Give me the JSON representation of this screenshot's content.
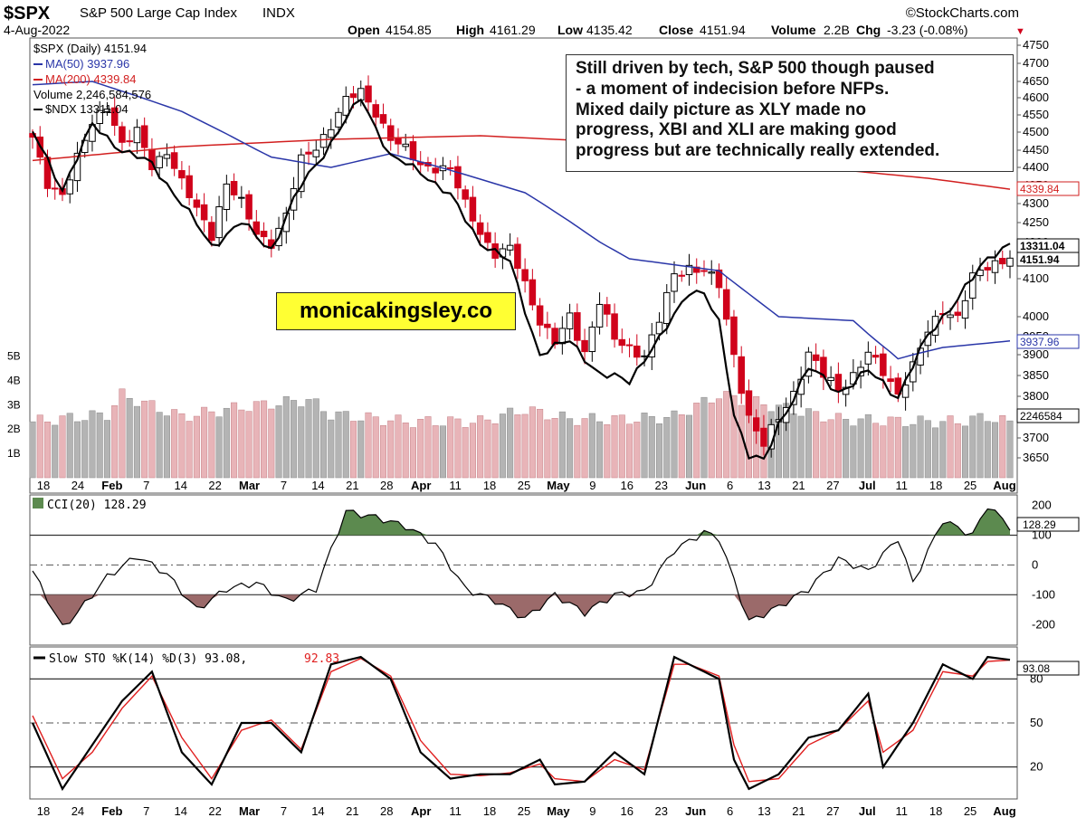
{
  "header": {
    "symbol": "$SPX",
    "name": "S&P 500 Large Cap Index",
    "exchange": "INDX",
    "date": "4-Aug-2022",
    "source": "©StockCharts.com",
    "open_label": "Open",
    "open": "4154.85",
    "high_label": "High",
    "high": "4161.29",
    "low_label": "Low",
    "low": "4135.42",
    "close_label": "Close",
    "close": "4151.94",
    "volume_label": "Volume",
    "volume": "2.2B",
    "chg_label": "Chg",
    "chg": "-3.23 (-0.08%)"
  },
  "legend": {
    "main": "$SPX (Daily) 4151.94",
    "ma50": "MA(50) 3937.96",
    "ma200": "MA(200) 4339.84",
    "volume": "Volume 2,246,584,576",
    "ndx": "$NDX 13311.04"
  },
  "annotation": {
    "lines": [
      "Still driven by tech, S&P 500 though paused",
      "- a moment of indecision before NFPs.",
      "Mixed daily picture as XLY made no",
      "progress, XBI and XLI are making good",
      "progress but are technically really extended."
    ]
  },
  "watermark": "monicakingsley.co",
  "value_tags": {
    "ndx": "13311.04",
    "close": "4151.94",
    "ma200": "4339.84",
    "ma50": "3937.96",
    "volume": "2246584"
  },
  "cci_legend": "CCI(20) 128.29",
  "cci_tag": "128.29",
  "sto_legend_main": "Slow STO %K(14) %D(3) 93.08,",
  "sto_legend_d": "92.83",
  "sto_tag": "93.08",
  "colors": {
    "up": "#000000",
    "down": "#d0021b",
    "ma50": "#2a36a8",
    "ma200": "#d21f1f",
    "vol_up": "#b4b4b4",
    "vol_down": "#e8b4b8",
    "cci_pos_fill": "#5c8a4f",
    "cci_neg_fill": "#9b6a6a",
    "sto_d": "#e02020"
  },
  "chart_data": [
    {
      "type": "candlestick",
      "title": "$SPX (Daily) 4151.94",
      "x_labels": [
        "18",
        "24",
        "Feb",
        "7",
        "14",
        "22",
        "Mar",
        "7",
        "14",
        "21",
        "28",
        "Apr",
        "11",
        "18",
        "25",
        "May",
        "9",
        "16",
        "23",
        "Jun",
        "6",
        "13",
        "21",
        "27",
        "Jul",
        "11",
        "18",
        "25",
        "Aug"
      ],
      "y_ticks": [
        3650,
        3700,
        3800,
        3850,
        3900,
        3950,
        4000,
        4100,
        4150,
        4200,
        4250,
        4300,
        4350,
        4400,
        4450,
        4500,
        4550,
        4600,
        4650,
        4700,
        4750
      ],
      "ylim": [
        3620,
        4760
      ],
      "close_anchors": [
        [
          0,
          4480
        ],
        [
          2,
          4350
        ],
        [
          4,
          4330
        ],
        [
          6,
          4430
        ],
        [
          8,
          4520
        ],
        [
          10,
          4580
        ],
        [
          12,
          4470
        ],
        [
          14,
          4500
        ],
        [
          16,
          4400
        ],
        [
          18,
          4450
        ],
        [
          20,
          4360
        ],
        [
          22,
          4280
        ],
        [
          24,
          4220
        ],
        [
          26,
          4360
        ],
        [
          28,
          4300
        ],
        [
          30,
          4220
        ],
        [
          32,
          4200
        ],
        [
          34,
          4270
        ],
        [
          36,
          4420
        ],
        [
          38,
          4460
        ],
        [
          40,
          4520
        ],
        [
          42,
          4590
        ],
        [
          44,
          4620
        ],
        [
          46,
          4560
        ],
        [
          48,
          4480
        ],
        [
          50,
          4450
        ],
        [
          52,
          4410
        ],
        [
          54,
          4400
        ],
        [
          56,
          4390
        ],
        [
          58,
          4300
        ],
        [
          60,
          4230
        ],
        [
          62,
          4160
        ],
        [
          64,
          4180
        ],
        [
          66,
          4090
        ],
        [
          68,
          3990
        ],
        [
          70,
          3930
        ],
        [
          72,
          4000
        ],
        [
          74,
          3910
        ],
        [
          76,
          4040
        ],
        [
          78,
          3940
        ],
        [
          80,
          3920
        ],
        [
          82,
          3900
        ],
        [
          84,
          3990
        ],
        [
          86,
          4110
        ],
        [
          88,
          4130
        ],
        [
          90,
          4120
        ],
        [
          92,
          4080
        ],
        [
          94,
          3900
        ],
        [
          96,
          3750
        ],
        [
          98,
          3680
        ],
        [
          100,
          3750
        ],
        [
          102,
          3810
        ],
        [
          104,
          3900
        ],
        [
          106,
          3850
        ],
        [
          108,
          3820
        ],
        [
          110,
          3850
        ],
        [
          112,
          3900
        ],
        [
          114,
          3860
        ],
        [
          116,
          3810
        ],
        [
          118,
          3870
        ],
        [
          120,
          3960
        ],
        [
          122,
          4020
        ],
        [
          124,
          4000
        ],
        [
          126,
          4100
        ],
        [
          128,
          4130
        ],
        [
          130,
          4150
        ],
        [
          131,
          4151.94
        ]
      ],
      "ma50_anchors": [
        [
          0,
          4640
        ],
        [
          8,
          4650
        ],
        [
          20,
          4560
        ],
        [
          32,
          4430
        ],
        [
          40,
          4400
        ],
        [
          48,
          4440
        ],
        [
          58,
          4380
        ],
        [
          66,
          4330
        ],
        [
          80,
          4150
        ],
        [
          92,
          4120
        ],
        [
          100,
          4000
        ],
        [
          110,
          3990
        ],
        [
          116,
          3890
        ],
        [
          122,
          3920
        ],
        [
          131,
          3937.96
        ]
      ],
      "ma200_anchors": [
        [
          0,
          4420
        ],
        [
          20,
          4460
        ],
        [
          40,
          4480
        ],
        [
          60,
          4490
        ],
        [
          80,
          4470
        ],
        [
          100,
          4410
        ],
        [
          120,
          4370
        ],
        [
          131,
          4339.84
        ]
      ],
      "ndx_anchors": [
        [
          0,
          4500
        ],
        [
          4,
          4340
        ],
        [
          8,
          4520
        ],
        [
          12,
          4450
        ],
        [
          16,
          4410
        ],
        [
          20,
          4300
        ],
        [
          24,
          4190
        ],
        [
          28,
          4250
        ],
        [
          32,
          4180
        ],
        [
          36,
          4350
        ],
        [
          40,
          4470
        ],
        [
          44,
          4600
        ],
        [
          48,
          4430
        ],
        [
          52,
          4390
        ],
        [
          56,
          4320
        ],
        [
          60,
          4200
        ],
        [
          64,
          4140
        ],
        [
          68,
          3900
        ],
        [
          72,
          3940
        ],
        [
          76,
          3850
        ],
        [
          80,
          3840
        ],
        [
          84,
          3940
        ],
        [
          88,
          4070
        ],
        [
          90,
          4060
        ],
        [
          92,
          3980
        ],
        [
          94,
          3760
        ],
        [
          96,
          3660
        ],
        [
          98,
          3640
        ],
        [
          100,
          3730
        ],
        [
          104,
          3870
        ],
        [
          108,
          3810
        ],
        [
          112,
          3860
        ],
        [
          116,
          3800
        ],
        [
          120,
          3950
        ],
        [
          124,
          4050
        ],
        [
          128,
          4150
        ],
        [
          131,
          4200
        ]
      ]
    },
    {
      "type": "bar",
      "title": "Volume 2,246,584,576",
      "y_ticks": [
        "1B",
        "2B",
        "3B",
        "4B",
        "5B"
      ],
      "ylim": [
        0,
        5.5
      ],
      "volume_anchors_b": [
        [
          0,
          2.3
        ],
        [
          10,
          2.6
        ],
        [
          12,
          3.4
        ],
        [
          20,
          2.5
        ],
        [
          28,
          2.9
        ],
        [
          34,
          3.1
        ],
        [
          37,
          3.2
        ],
        [
          40,
          2.6
        ],
        [
          50,
          2.3
        ],
        [
          60,
          2.3
        ],
        [
          66,
          2.8
        ],
        [
          72,
          2.4
        ],
        [
          80,
          2.4
        ],
        [
          86,
          2.5
        ],
        [
          90,
          3.1
        ],
        [
          92,
          3.4
        ],
        [
          100,
          2.9
        ],
        [
          108,
          2.4
        ],
        [
          118,
          2.3
        ],
        [
          124,
          2.3
        ],
        [
          128,
          2.5
        ],
        [
          131,
          2.25
        ]
      ]
    },
    {
      "type": "line",
      "title": "CCI(20) 128.29",
      "y_ticks": [
        -200,
        -100,
        0,
        100,
        200
      ],
      "ylim": [
        -260,
        220
      ],
      "anchors": [
        [
          0,
          -20
        ],
        [
          4,
          -210
        ],
        [
          6,
          -160
        ],
        [
          10,
          -40
        ],
        [
          14,
          30
        ],
        [
          18,
          -30
        ],
        [
          22,
          -150
        ],
        [
          26,
          -80
        ],
        [
          30,
          -60
        ],
        [
          34,
          -120
        ],
        [
          38,
          -80
        ],
        [
          42,
          180
        ],
        [
          46,
          160
        ],
        [
          50,
          130
        ],
        [
          54,
          70
        ],
        [
          58,
          -80
        ],
        [
          62,
          -120
        ],
        [
          66,
          -180
        ],
        [
          70,
          -100
        ],
        [
          74,
          -160
        ],
        [
          78,
          -100
        ],
        [
          82,
          -90
        ],
        [
          86,
          50
        ],
        [
          90,
          110
        ],
        [
          92,
          90
        ],
        [
          96,
          -190
        ],
        [
          100,
          -140
        ],
        [
          104,
          -80
        ],
        [
          108,
          20
        ],
        [
          112,
          -20
        ],
        [
          116,
          90
        ],
        [
          118,
          -60
        ],
        [
          122,
          150
        ],
        [
          126,
          100
        ],
        [
          128,
          200
        ],
        [
          131,
          128.29
        ]
      ]
    },
    {
      "type": "line",
      "title": "Slow STO %K(14) %D(3) 93.08, 92.83",
      "y_ticks": [
        20,
        50,
        80
      ],
      "ylim": [
        0,
        100
      ],
      "k_anchors": [
        [
          0,
          50
        ],
        [
          4,
          5
        ],
        [
          8,
          35
        ],
        [
          12,
          65
        ],
        [
          16,
          85
        ],
        [
          20,
          30
        ],
        [
          24,
          8
        ],
        [
          28,
          50
        ],
        [
          32,
          50
        ],
        [
          36,
          30
        ],
        [
          40,
          90
        ],
        [
          44,
          95
        ],
        [
          48,
          80
        ],
        [
          52,
          30
        ],
        [
          56,
          12
        ],
        [
          60,
          15
        ],
        [
          64,
          15
        ],
        [
          68,
          25
        ],
        [
          70,
          8
        ],
        [
          74,
          10
        ],
        [
          78,
          30
        ],
        [
          82,
          15
        ],
        [
          86,
          95
        ],
        [
          88,
          90
        ],
        [
          92,
          80
        ],
        [
          94,
          25
        ],
        [
          96,
          5
        ],
        [
          100,
          15
        ],
        [
          104,
          40
        ],
        [
          108,
          45
        ],
        [
          112,
          70
        ],
        [
          114,
          20
        ],
        [
          118,
          50
        ],
        [
          122,
          90
        ],
        [
          126,
          80
        ],
        [
          128,
          95
        ],
        [
          131,
          93.08
        ]
      ],
      "d_anchors": [
        [
          0,
          55
        ],
        [
          4,
          12
        ],
        [
          8,
          30
        ],
        [
          12,
          60
        ],
        [
          16,
          82
        ],
        [
          20,
          40
        ],
        [
          24,
          12
        ],
        [
          28,
          45
        ],
        [
          32,
          52
        ],
        [
          36,
          32
        ],
        [
          40,
          85
        ],
        [
          44,
          94
        ],
        [
          48,
          82
        ],
        [
          52,
          38
        ],
        [
          56,
          15
        ],
        [
          60,
          14
        ],
        [
          64,
          16
        ],
        [
          68,
          22
        ],
        [
          70,
          12
        ],
        [
          74,
          10
        ],
        [
          78,
          25
        ],
        [
          82,
          18
        ],
        [
          86,
          90
        ],
        [
          88,
          90
        ],
        [
          92,
          82
        ],
        [
          94,
          35
        ],
        [
          96,
          10
        ],
        [
          100,
          12
        ],
        [
          104,
          35
        ],
        [
          108,
          45
        ],
        [
          112,
          65
        ],
        [
          114,
          30
        ],
        [
          118,
          45
        ],
        [
          122,
          85
        ],
        [
          126,
          82
        ],
        [
          128,
          92
        ],
        [
          131,
          92.83
        ]
      ]
    }
  ]
}
